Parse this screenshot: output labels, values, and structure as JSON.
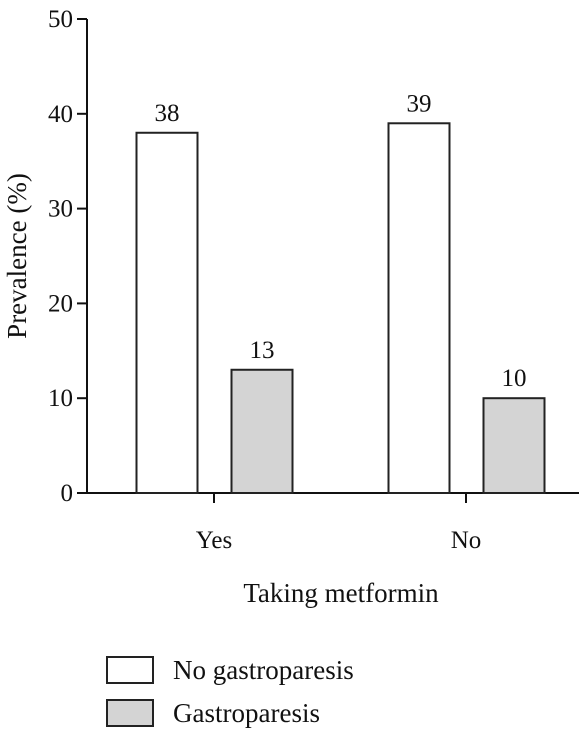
{
  "chart_data": {
    "type": "bar",
    "title": "",
    "xlabel": "Taking metformin",
    "ylabel": "Prevalence (%)",
    "categories": [
      "Yes",
      "No"
    ],
    "series": [
      {
        "name": "No gastroparesis",
        "values": [
          38,
          39
        ],
        "color": "#ffffff"
      },
      {
        "name": "Gastroparesis",
        "values": [
          13,
          10
        ],
        "color": "#d4d4d4"
      }
    ],
    "ylim": [
      0,
      50
    ],
    "yticks": [
      0,
      10,
      20,
      30,
      40,
      50
    ],
    "grid": false,
    "data_labels": true,
    "legend_position": "bottom-left",
    "bar_stroke_color": "#222222"
  }
}
